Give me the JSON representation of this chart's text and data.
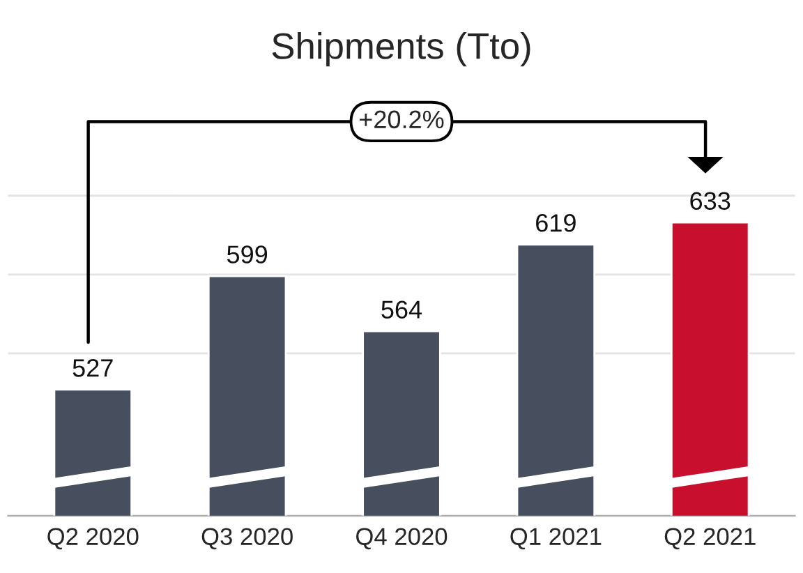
{
  "chart_data": {
    "type": "bar",
    "title": "Shipments (Tto)",
    "categories": [
      "Q2 2020",
      "Q3 2020",
      "Q4 2020",
      "Q1 2021",
      "Q2 2021"
    ],
    "values": [
      527,
      599,
      564,
      619,
      633
    ],
    "colors": [
      "#474e5e",
      "#474e5e",
      "#474e5e",
      "#474e5e",
      "#c8102e"
    ],
    "data_labels": true,
    "ylim": [
      447,
      700
    ],
    "yticks": [
      {
        "value": 550,
        "label": null
      },
      {
        "value": 600,
        "label": null
      },
      {
        "value": 650,
        "label": null
      }
    ],
    "grid": "y",
    "tick_labels": "x",
    "annotations": [
      "+20.2%"
    ]
  }
}
